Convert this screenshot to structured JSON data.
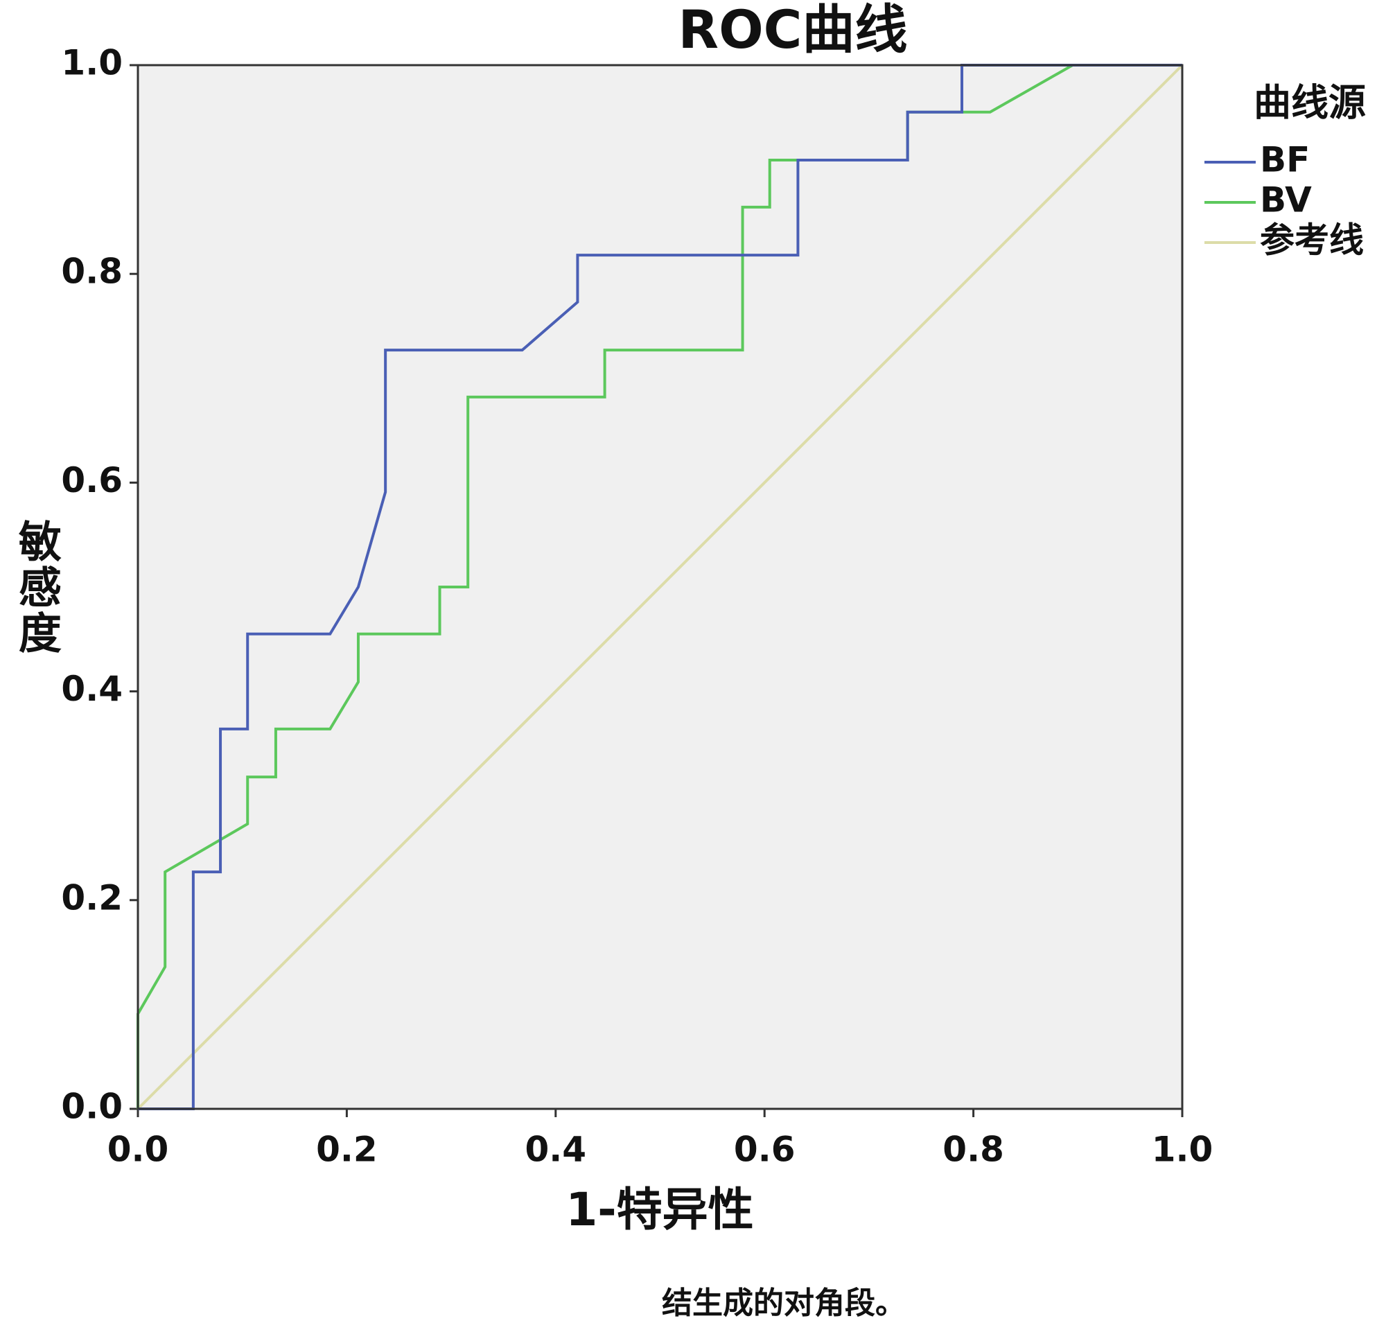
{
  "chart_data": {
    "type": "line",
    "title": "ROC曲线",
    "x_label": "1-特异性",
    "y_label": "敏感度",
    "legend_title": "曲线源",
    "note": "结生成的对角段。",
    "legend": "right",
    "xlim": [
      0,
      1
    ],
    "ylim": [
      0,
      1
    ],
    "xticks": [
      {
        "value": 0,
        "label": "0.0"
      },
      0.2,
      0.4,
      0.6,
      0.8,
      {
        "value": 1,
        "label": "1.0"
      }
    ],
    "yticks": [
      {
        "value": 0,
        "label": "0.0"
      },
      0.2,
      0.4,
      0.6,
      0.8,
      {
        "value": 1,
        "label": "1.0"
      }
    ],
    "series": [
      {
        "name": "BF",
        "color": "#4a5fb5",
        "x": [
          0,
          0.053,
          0.053,
          0.079,
          0.079,
          0.105,
          0.105,
          0.184,
          0.211,
          0.237,
          0.237,
          0.368,
          0.421,
          0.421,
          0.632,
          0.632,
          0.737,
          0.737,
          0.789,
          0.789,
          1
        ],
        "values": [
          0,
          0,
          0.227,
          0.227,
          0.364,
          0.364,
          0.455,
          0.455,
          0.5,
          0.591,
          0.727,
          0.727,
          0.773,
          0.818,
          0.818,
          0.909,
          0.909,
          0.955,
          0.955,
          1,
          1
        ]
      },
      {
        "name": "BV",
        "color": "#5cc85c",
        "x": [
          0,
          0,
          0.026,
          0.026,
          0.105,
          0.105,
          0.132,
          0.132,
          0.184,
          0.211,
          0.211,
          0.289,
          0.289,
          0.316,
          0.316,
          0.447,
          0.447,
          0.579,
          0.579,
          0.605,
          0.605,
          0.737,
          0.737,
          0.816,
          0.895,
          1
        ],
        "values": [
          0,
          0.091,
          0.136,
          0.227,
          0.273,
          0.318,
          0.318,
          0.364,
          0.364,
          0.409,
          0.455,
          0.455,
          0.5,
          0.5,
          0.682,
          0.682,
          0.727,
          0.727,
          0.864,
          0.864,
          0.909,
          0.909,
          0.955,
          0.955,
          1,
          1
        ]
      },
      {
        "name": "参考线",
        "color": "#dcdca8",
        "x": [
          0,
          1
        ],
        "values": [
          0,
          1
        ]
      }
    ]
  }
}
